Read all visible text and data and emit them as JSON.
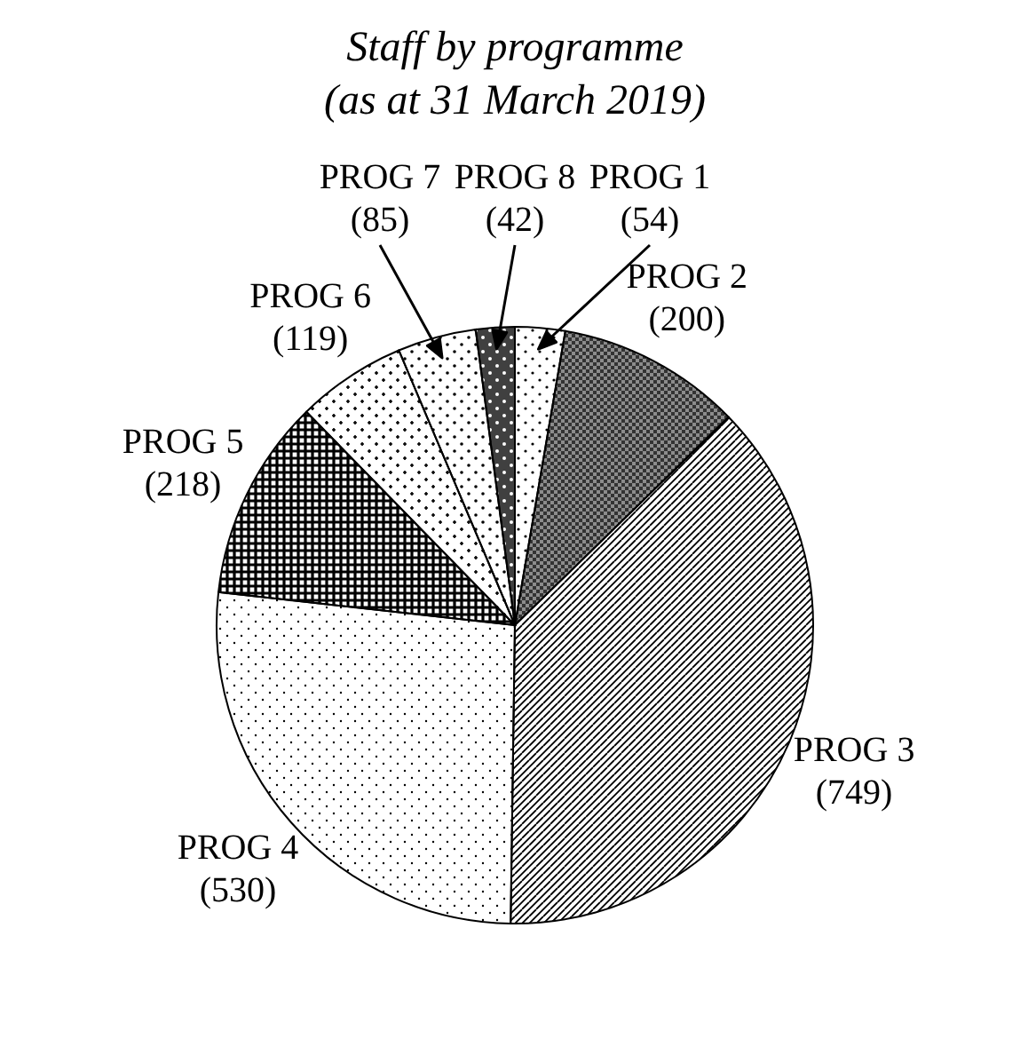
{
  "chart_data": {
    "type": "pie",
    "title": "Staff by programme\n(as at 31 March 2019)",
    "categories": [
      "PROG 1",
      "PROG 2",
      "PROG 3",
      "PROG 4",
      "PROG 5",
      "PROG 6",
      "PROG 7",
      "PROG 8"
    ],
    "values": [
      54,
      200,
      749,
      530,
      218,
      119,
      85,
      42
    ],
    "value_labels": [
      "(54)",
      "(200)",
      "(749)",
      "(530)",
      "(218)",
      "(119)",
      "(85)",
      "(42)"
    ],
    "colors": [
      "#ffffff",
      "#8c8c8c",
      "#ffffff",
      "#ffffff",
      "#ffffff",
      "#ffffff",
      "#ffffff",
      "#404040"
    ]
  }
}
